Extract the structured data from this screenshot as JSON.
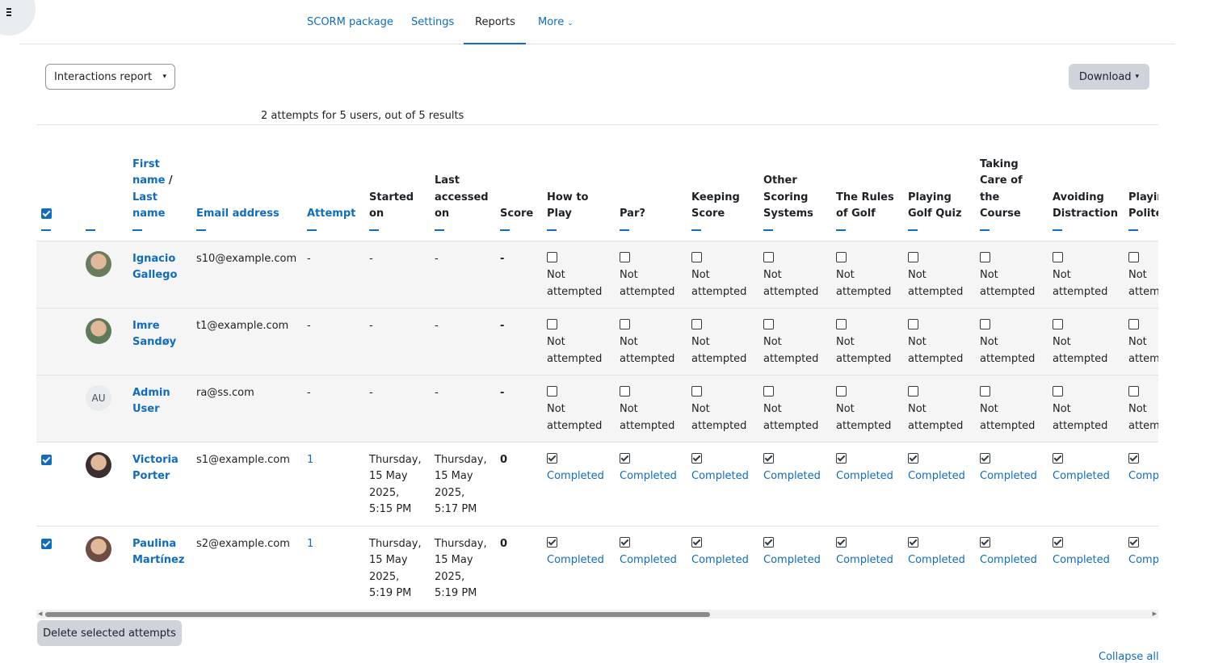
{
  "nav": {
    "tabs": [
      {
        "label": "SCORM package",
        "active": false
      },
      {
        "label": "Settings",
        "active": false
      },
      {
        "label": "Reports",
        "active": true
      },
      {
        "label": "More",
        "active": false
      }
    ]
  },
  "report_select": {
    "value": "Interactions report"
  },
  "download": {
    "label": "Download"
  },
  "summary": "2 attempts for 5 users, out of 5 results",
  "table": {
    "headers": {
      "first_name": "First name",
      "last_name": "Last name",
      "name_sep": "/",
      "email": "Email address",
      "attempt": "Attempt",
      "started": "Started on",
      "accessed": "Last accessed on",
      "score": "Score",
      "sco": [
        "How to Play",
        "Par?",
        "Keeping Score",
        "Other Scoring Systems",
        "The Rules of Golf",
        "Playing Golf Quiz",
        "Taking Care of the Course",
        "Avoiding Distraction",
        "Playing Politely"
      ]
    },
    "rows": [
      {
        "checkbox": false,
        "avatar": "photo",
        "name": "Ignacio Gallego",
        "email": "s10@example.com",
        "attempt": "-",
        "started": "-",
        "accessed": "-",
        "score": "-",
        "status": "Not attempted"
      },
      {
        "checkbox": false,
        "avatar": "photo",
        "name": "Imre Sandøy",
        "email": "t1@example.com",
        "attempt": "-",
        "started": "-",
        "accessed": "-",
        "score": "-",
        "status": "Not attempted"
      },
      {
        "checkbox": false,
        "avatar": "AU",
        "name": "Admin User",
        "email": "ra@ss.com",
        "attempt": "-",
        "started": "-",
        "accessed": "-",
        "score": "-",
        "status": "Not attempted"
      },
      {
        "checkbox": true,
        "avatar": "photo",
        "name": "Victoria Porter",
        "email": "s1@example.com",
        "attempt": "1",
        "started": "Thursday, 15 May 2025, 5:15 PM",
        "accessed": "Thursday, 15 May 2025, 5:17 PM",
        "score": "0",
        "status": "Completed"
      },
      {
        "checkbox": true,
        "avatar": "photo",
        "name": "Paulina Martínez",
        "email": "s2@example.com",
        "attempt": "1",
        "started": "Thursday, 15 May 2025, 5:19 PM",
        "accessed": "Thursday, 15 May 2025, 5:19 PM",
        "score": "0",
        "status": "Completed"
      }
    ]
  },
  "delete_button": "Delete selected attempts",
  "collapse_all": "Collapse all",
  "colors": {
    "link": "#0f6cbf",
    "button_bg": "#ced4da",
    "row_shade": "#f5f5f5"
  }
}
